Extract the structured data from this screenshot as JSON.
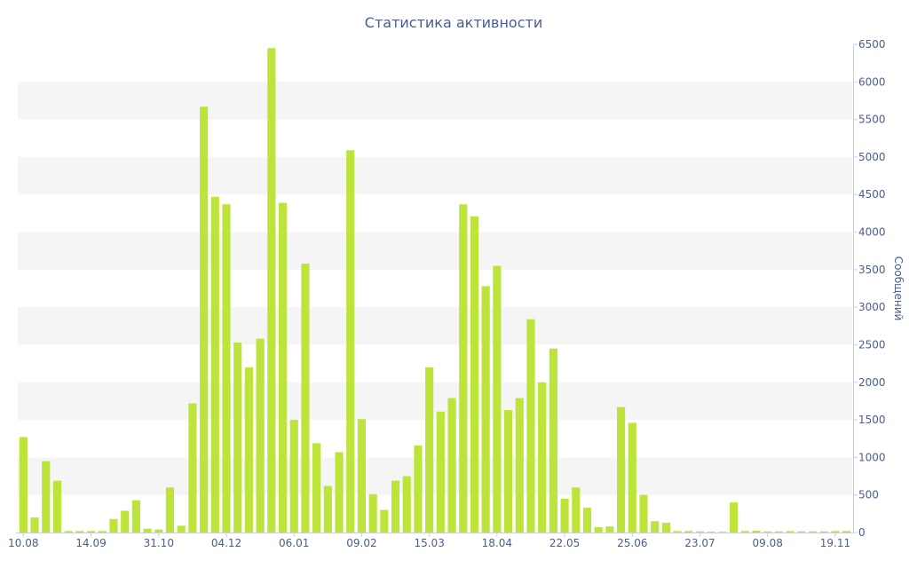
{
  "colors": {
    "bar": "#bde43a",
    "band": "#f5f5f5",
    "axis": "#c8d0dd",
    "text": "#4a5d8f"
  },
  "chart_data": {
    "type": "bar",
    "title": "Статистика активности",
    "xlabel": "",
    "ylabel": "Сообщений",
    "ylim": [
      0,
      6500
    ],
    "yticks": [
      0,
      500,
      1000,
      1500,
      2000,
      2500,
      3000,
      3500,
      4000,
      4500,
      5000,
      5500,
      6000,
      6500
    ],
    "y_axis_side": "right",
    "grid": "alternating horizontal bands",
    "legend": "none",
    "x_tick_labels": [
      {
        "label": "10.08",
        "index": 0
      },
      {
        "label": "14.09",
        "index": 6
      },
      {
        "label": "31.10",
        "index": 12
      },
      {
        "label": "04.12",
        "index": 18
      },
      {
        "label": "06.01",
        "index": 24
      },
      {
        "label": "09.02",
        "index": 30
      },
      {
        "label": "15.03",
        "index": 36
      },
      {
        "label": "18.04",
        "index": 42
      },
      {
        "label": "22.05",
        "index": 48
      },
      {
        "label": "25.06",
        "index": 54
      },
      {
        "label": "23.07",
        "index": 60
      },
      {
        "label": "09.08",
        "index": 66
      },
      {
        "label": "19.11",
        "index": 72
      }
    ],
    "values": [
      1270,
      200,
      950,
      690,
      20,
      20,
      20,
      20,
      180,
      290,
      430,
      50,
      40,
      600,
      90,
      1720,
      5670,
      4470,
      4370,
      2530,
      2200,
      2580,
      6450,
      4390,
      1500,
      3580,
      1190,
      620,
      1070,
      5090,
      1510,
      510,
      300,
      690,
      750,
      1160,
      2200,
      1610,
      1790,
      4370,
      4210,
      3280,
      3550,
      1630,
      1790,
      2840,
      2000,
      2450,
      450,
      600,
      330,
      70,
      80,
      1670,
      1460,
      500,
      150,
      130,
      20,
      20,
      15,
      10,
      10,
      400,
      20,
      25,
      15,
      15,
      20,
      15,
      15,
      15,
      20,
      20
    ]
  }
}
